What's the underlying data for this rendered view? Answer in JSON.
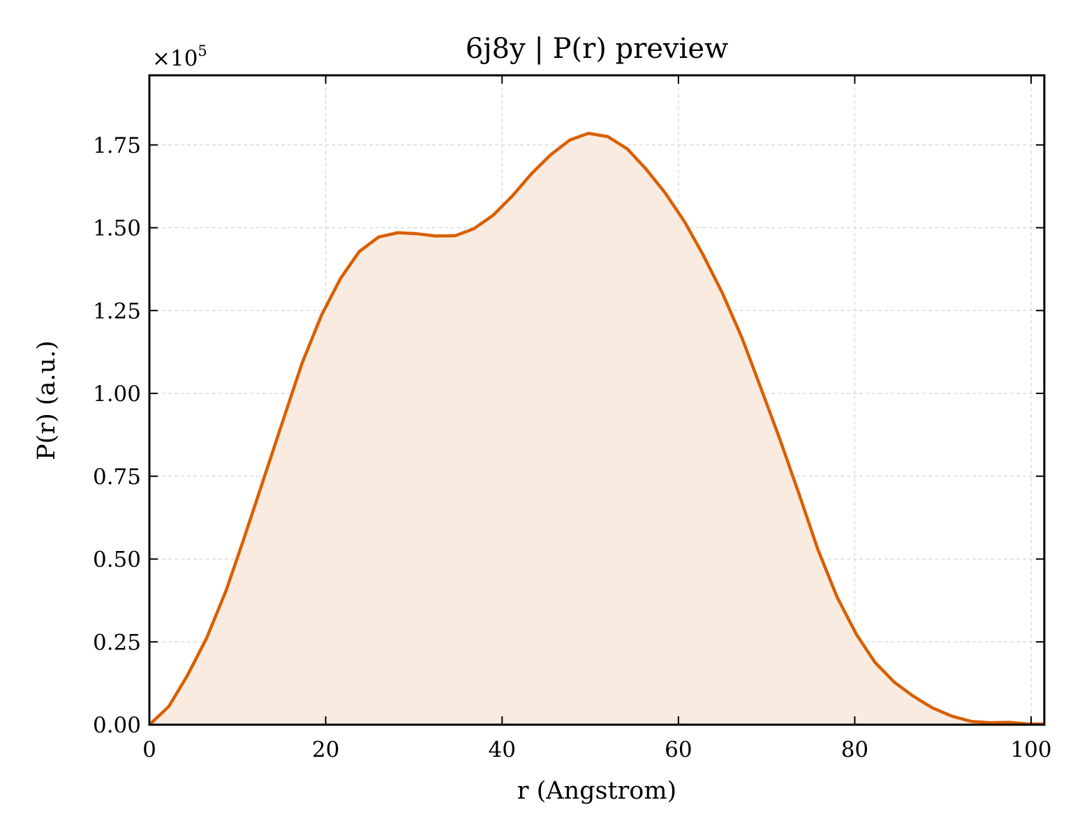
{
  "chart_data": {
    "type": "area",
    "title": "6j8y | P(r) preview",
    "xlabel": "r (Angstrom)",
    "ylabel": "P(r) (a.u.)",
    "y_multiplier_label": "×10",
    "y_multiplier_exponent": "5",
    "xlim": [
      0,
      101.5
    ],
    "ylim": [
      0,
      1.96
    ],
    "xticks": [
      0,
      20,
      40,
      60,
      80,
      100
    ],
    "xtick_labels": [
      "0",
      "20",
      "40",
      "60",
      "80",
      "100"
    ],
    "yticks": [
      0,
      0.25,
      0.5,
      0.75,
      1.0,
      1.25,
      1.5,
      1.75
    ],
    "ytick_labels": [
      "0.00",
      "0.25",
      "0.50",
      "0.75",
      "1.00",
      "1.25",
      "1.50",
      "1.75"
    ],
    "grid": true,
    "line_color": "#d95f02",
    "fill_color": "#f9ebe0",
    "series": [
      {
        "x": [
          0,
          2.2,
          4.3,
          6.5,
          8.7,
          10.8,
          13.0,
          15.2,
          17.3,
          19.5,
          21.7,
          23.8,
          26.0,
          28.2,
          30.3,
          32.5,
          34.7,
          36.8,
          39.0,
          41.2,
          43.3,
          45.5,
          47.7,
          49.8,
          52.0,
          54.2,
          56.3,
          58.5,
          60.7,
          62.8,
          65.0,
          67.2,
          69.3,
          71.5,
          73.7,
          75.8,
          78.0,
          80.2,
          82.3,
          84.5,
          86.7,
          88.8,
          91.0,
          93.2,
          95.3,
          97.5,
          99.7,
          101.5
        ],
        "y": [
          0.0,
          0.055,
          0.148,
          0.262,
          0.405,
          0.568,
          0.745,
          0.922,
          1.09,
          1.235,
          1.348,
          1.428,
          1.472,
          1.485,
          1.482,
          1.475,
          1.476,
          1.497,
          1.538,
          1.597,
          1.662,
          1.72,
          1.765,
          1.785,
          1.775,
          1.738,
          1.678,
          1.605,
          1.518,
          1.418,
          1.302,
          1.168,
          1.02,
          0.862,
          0.695,
          0.53,
          0.385,
          0.272,
          0.188,
          0.128,
          0.085,
          0.051,
          0.026,
          0.01,
          0.006,
          0.007,
          0.002,
          0.002
        ]
      }
    ]
  }
}
